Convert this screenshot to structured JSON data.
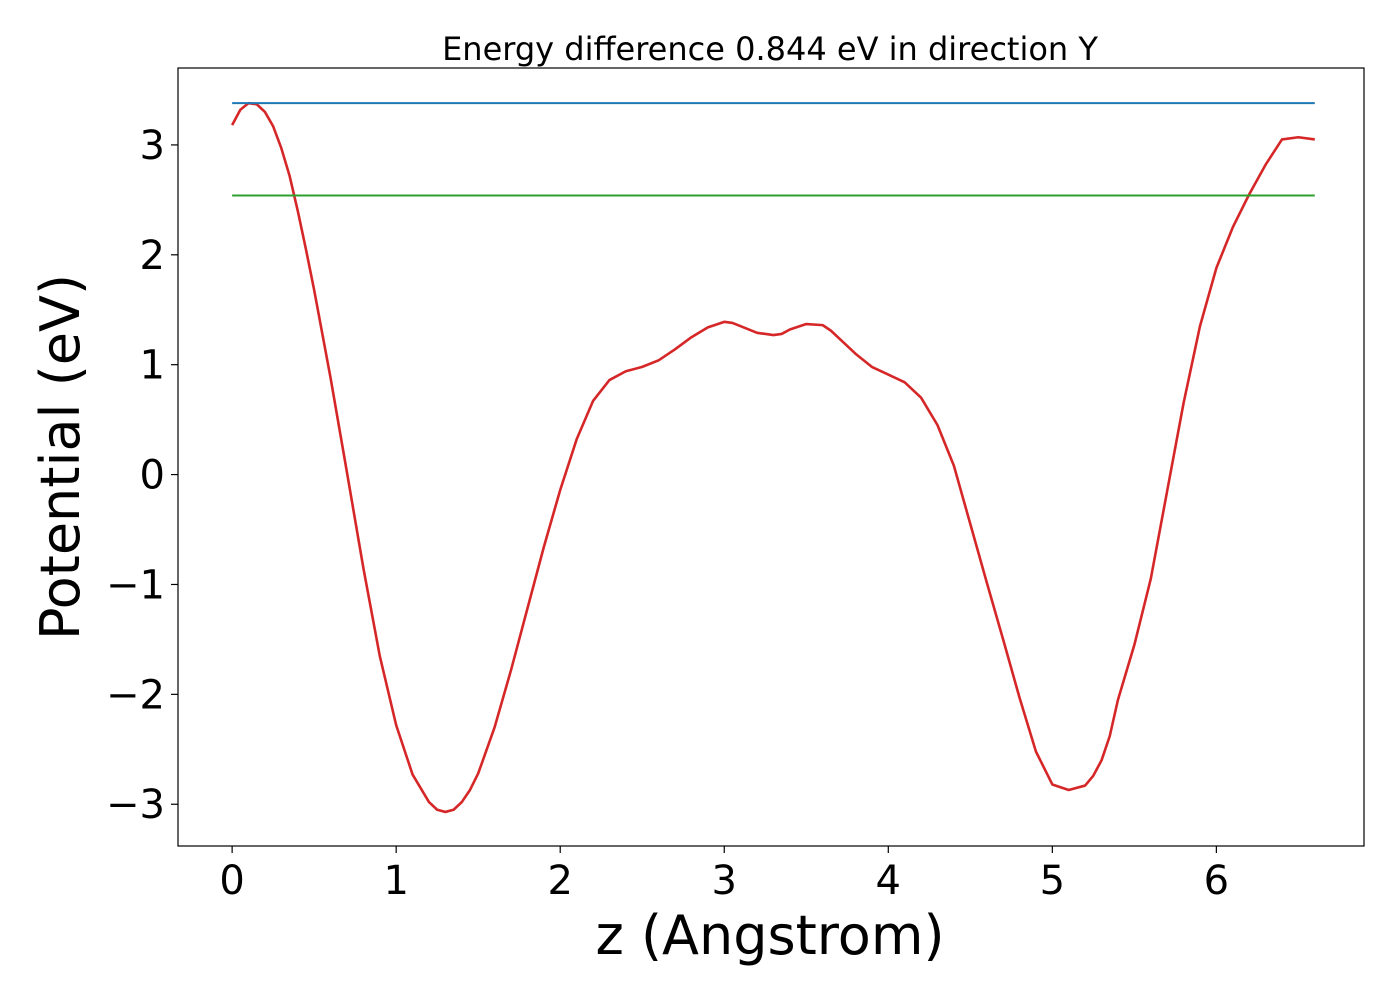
{
  "chart_data": {
    "type": "line",
    "title": "Energy difference 0.844 eV in direction Y",
    "xlabel": "z (Angstrom)",
    "ylabel": "Potential (eV)",
    "xlim": [
      -0.33,
      6.9
    ],
    "ylim": [
      -3.38,
      3.7
    ],
    "x_ticks": [
      {
        "value": 0,
        "label": "0"
      },
      {
        "value": 1,
        "label": "1"
      },
      {
        "value": 2,
        "label": "2"
      },
      {
        "value": 3,
        "label": "3"
      },
      {
        "value": 4,
        "label": "4"
      },
      {
        "value": 5,
        "label": "5"
      },
      {
        "value": 6,
        "label": "6"
      }
    ],
    "y_ticks": [
      {
        "value": -3,
        "label": "−3"
      },
      {
        "value": -2,
        "label": "−2"
      },
      {
        "value": -1,
        "label": "−1"
      },
      {
        "value": 0,
        "label": "0"
      },
      {
        "value": 1,
        "label": "1"
      },
      {
        "value": 2,
        "label": "2"
      },
      {
        "value": 3,
        "label": "3"
      }
    ],
    "grid": false,
    "series": [
      {
        "color": "#d62728",
        "x": [
          0.0,
          0.05,
          0.1,
          0.15,
          0.2,
          0.25,
          0.3,
          0.35,
          0.4,
          0.45,
          0.5,
          0.6,
          0.7,
          0.8,
          0.9,
          1.0,
          1.1,
          1.2,
          1.25,
          1.3,
          1.35,
          1.4,
          1.45,
          1.5,
          1.6,
          1.7,
          1.8,
          1.9,
          2.0,
          2.1,
          2.2,
          2.3,
          2.4,
          2.5,
          2.6,
          2.7,
          2.8,
          2.9,
          3.0,
          3.05,
          3.1,
          3.2,
          3.3,
          3.35,
          3.4,
          3.5,
          3.6,
          3.65,
          3.7,
          3.8,
          3.9,
          4.0,
          4.1,
          4.2,
          4.3,
          4.4,
          4.5,
          4.6,
          4.7,
          4.8,
          4.9,
          5.0,
          5.1,
          5.2,
          5.25,
          5.3,
          5.35,
          5.4,
          5.5,
          5.6,
          5.7,
          5.8,
          5.9,
          6.0,
          6.1,
          6.2,
          6.3,
          6.4,
          6.5,
          6.6
        ],
        "values": [
          3.18,
          3.32,
          3.38,
          3.37,
          3.3,
          3.17,
          2.97,
          2.72,
          2.4,
          2.05,
          1.68,
          0.88,
          0.02,
          -0.85,
          -1.65,
          -2.28,
          -2.73,
          -2.98,
          -3.05,
          -3.07,
          -3.05,
          -2.98,
          -2.87,
          -2.72,
          -2.3,
          -1.78,
          -1.22,
          -0.66,
          -0.14,
          0.32,
          0.67,
          0.86,
          0.94,
          0.98,
          1.04,
          1.14,
          1.25,
          1.34,
          1.39,
          1.38,
          1.35,
          1.29,
          1.27,
          1.28,
          1.32,
          1.37,
          1.36,
          1.31,
          1.24,
          1.1,
          0.98,
          0.91,
          0.84,
          0.7,
          0.45,
          0.08,
          -0.45,
          -0.98,
          -1.5,
          -2.03,
          -2.52,
          -2.82,
          -2.87,
          -2.83,
          -2.74,
          -2.6,
          -2.38,
          -2.05,
          -1.55,
          -0.95,
          -0.15,
          0.65,
          1.35,
          1.88,
          2.25,
          2.55,
          2.82,
          3.05,
          3.07,
          3.05
        ],
        "stroke_width": 2.6
      },
      {
        "color": "#1f77b4",
        "x": [
          0.0,
          6.6
        ],
        "values": [
          3.38,
          3.38
        ],
        "stroke_width": 2
      },
      {
        "color": "#2ca02c",
        "x": [
          0.0,
          6.6
        ],
        "values": [
          2.54,
          2.54
        ],
        "stroke_width": 2
      }
    ]
  }
}
